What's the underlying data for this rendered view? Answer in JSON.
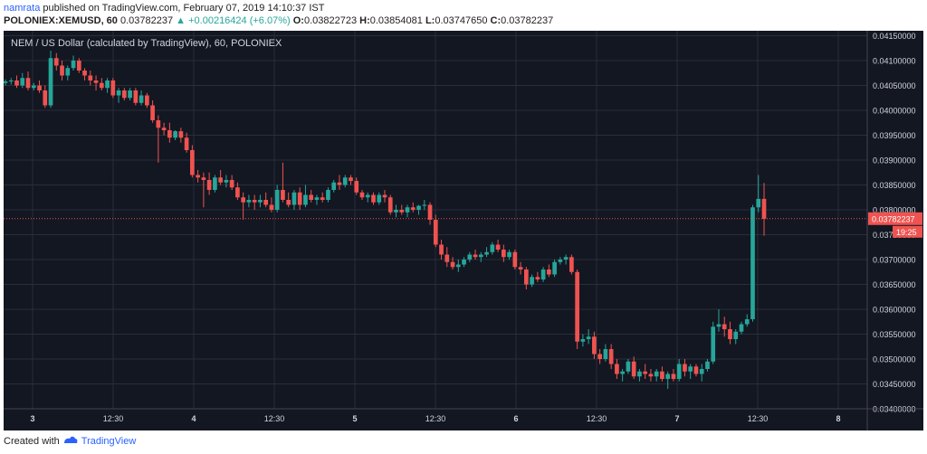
{
  "header": {
    "author": "namrata",
    "published_text": "published on TradingView.com, February 07, 2019 14:10:37 IST",
    "symbol": "POLONIEX:XEMUSD, 60",
    "last": "0.03782237",
    "change": "▲ +0.00216424 (+6.07%)",
    "open_label": "O:",
    "open": "0.03822723",
    "high_label": "H:",
    "high": "0.03854081",
    "low_label": "L:",
    "low": "0.03747650",
    "close_label": "C:",
    "close": "0.03782237"
  },
  "footer": {
    "created_with": "Created with",
    "brand": "TradingView"
  },
  "colors": {
    "background": "#131722",
    "grid": "#2a2e39",
    "up": "#26a69a",
    "down": "#ef5350",
    "price_line": "#ef5350",
    "axis_text": "#d1d4dc"
  },
  "chart_data": {
    "type": "candlestick",
    "title": "NEM / US Dollar (calculated by TradingView), 60, POLONIEX",
    "x_tick_labels": [
      "3",
      "12:30",
      "4",
      "12:30",
      "5",
      "12:30",
      "6",
      "12:30",
      "7",
      "12:30",
      "8"
    ],
    "y_tick_labels": [
      "0.04150000",
      "0.04100000",
      "0.04050000",
      "0.04000000",
      "0.03950000",
      "0.03900000",
      "0.03850000",
      "0.03800000",
      "0.03750000",
      "0.03700000",
      "0.03650000",
      "0.03600000",
      "0.03550000",
      "0.03500000",
      "0.03450000",
      "0.03400000"
    ],
    "ylim": [
      0.034,
      0.0416
    ],
    "price_label": "0.03782237",
    "countdown_label": "19:25",
    "candles": [
      [
        0.04055,
        0.04062,
        0.0405,
        0.04058
      ],
      [
        0.04058,
        0.04065,
        0.04052,
        0.0406
      ],
      [
        0.0406,
        0.0407,
        0.04045,
        0.0405
      ],
      [
        0.0405,
        0.04075,
        0.04045,
        0.04065
      ],
      [
        0.04065,
        0.04078,
        0.0404,
        0.04045
      ],
      [
        0.04045,
        0.04055,
        0.0404,
        0.0405
      ],
      [
        0.0405,
        0.0406,
        0.04035,
        0.0404
      ],
      [
        0.0404,
        0.0405,
        0.04005,
        0.0401
      ],
      [
        0.0401,
        0.0412,
        0.04005,
        0.04105
      ],
      [
        0.04105,
        0.04115,
        0.0408,
        0.0409
      ],
      [
        0.0409,
        0.041,
        0.0406,
        0.0407
      ],
      [
        0.0407,
        0.0409,
        0.0406,
        0.04085
      ],
      [
        0.04085,
        0.0411,
        0.0408,
        0.041
      ],
      [
        0.041,
        0.04105,
        0.04075,
        0.0408
      ],
      [
        0.0408,
        0.04085,
        0.0406,
        0.0407
      ],
      [
        0.0407,
        0.0408,
        0.0405,
        0.0406
      ],
      [
        0.0406,
        0.0407,
        0.0404,
        0.04055
      ],
      [
        0.04055,
        0.04065,
        0.0404,
        0.04045
      ],
      [
        0.04045,
        0.04065,
        0.04035,
        0.0406
      ],
      [
        0.0406,
        0.04065,
        0.04025,
        0.0403
      ],
      [
        0.0403,
        0.04045,
        0.04015,
        0.0404
      ],
      [
        0.0404,
        0.04045,
        0.0402,
        0.04025
      ],
      [
        0.04025,
        0.04045,
        0.0402,
        0.0404
      ],
      [
        0.0404,
        0.04045,
        0.0401,
        0.04015
      ],
      [
        0.04015,
        0.0404,
        0.0401,
        0.0403
      ],
      [
        0.0403,
        0.04035,
        0.04005,
        0.0401
      ],
      [
        0.0401,
        0.0402,
        0.03975,
        0.0398
      ],
      [
        0.0398,
        0.0399,
        0.03895,
        0.03965
      ],
      [
        0.03965,
        0.03975,
        0.0395,
        0.0396
      ],
      [
        0.0396,
        0.03975,
        0.03935,
        0.03945
      ],
      [
        0.03945,
        0.0396,
        0.0394,
        0.03958
      ],
      [
        0.03958,
        0.03965,
        0.03935,
        0.03945
      ],
      [
        0.03945,
        0.03955,
        0.03915,
        0.0392
      ],
      [
        0.0392,
        0.0393,
        0.03865,
        0.0387
      ],
      [
        0.0387,
        0.0388,
        0.03855,
        0.03865
      ],
      [
        0.03865,
        0.03875,
        0.03805,
        0.0386
      ],
      [
        0.0386,
        0.03875,
        0.0383,
        0.0384
      ],
      [
        0.0384,
        0.0387,
        0.03835,
        0.03865
      ],
      [
        0.03865,
        0.0388,
        0.0385,
        0.03855
      ],
      [
        0.03855,
        0.0387,
        0.03845,
        0.0386
      ],
      [
        0.0386,
        0.0387,
        0.0384,
        0.03845
      ],
      [
        0.03845,
        0.03855,
        0.0382,
        0.03825
      ],
      [
        0.03825,
        0.03835,
        0.0378,
        0.03815
      ],
      [
        0.03815,
        0.0383,
        0.03805,
        0.0382
      ],
      [
        0.0382,
        0.0383,
        0.038,
        0.03815
      ],
      [
        0.03815,
        0.0383,
        0.03805,
        0.0382
      ],
      [
        0.0382,
        0.03835,
        0.03805,
        0.0381
      ],
      [
        0.0381,
        0.03825,
        0.03795,
        0.038
      ],
      [
        0.038,
        0.0385,
        0.03795,
        0.0384
      ],
      [
        0.0384,
        0.03895,
        0.03815,
        0.0382
      ],
      [
        0.0382,
        0.03835,
        0.03805,
        0.0381
      ],
      [
        0.0381,
        0.0384,
        0.038,
        0.03835
      ],
      [
        0.03835,
        0.03845,
        0.038,
        0.0381
      ],
      [
        0.0381,
        0.0385,
        0.03805,
        0.0383
      ],
      [
        0.0383,
        0.0384,
        0.03815,
        0.0382
      ],
      [
        0.0382,
        0.0383,
        0.0381,
        0.03825
      ],
      [
        0.03825,
        0.03835,
        0.03815,
        0.0382
      ],
      [
        0.0382,
        0.03845,
        0.03815,
        0.0384
      ],
      [
        0.0384,
        0.0386,
        0.03835,
        0.03855
      ],
      [
        0.03855,
        0.0387,
        0.0384,
        0.0385
      ],
      [
        0.0385,
        0.0387,
        0.03845,
        0.03865
      ],
      [
        0.03865,
        0.0387,
        0.0385,
        0.03858
      ],
      [
        0.03858,
        0.03865,
        0.0383,
        0.03835
      ],
      [
        0.03835,
        0.0384,
        0.0382,
        0.03825
      ],
      [
        0.03825,
        0.03835,
        0.03815,
        0.0383
      ],
      [
        0.0383,
        0.03835,
        0.0381,
        0.03815
      ],
      [
        0.03815,
        0.03835,
        0.0381,
        0.0383
      ],
      [
        0.0383,
        0.0384,
        0.03815,
        0.03825
      ],
      [
        0.03825,
        0.0383,
        0.0379,
        0.03795
      ],
      [
        0.03795,
        0.0381,
        0.03785,
        0.038
      ],
      [
        0.038,
        0.0381,
        0.0379,
        0.03795
      ],
      [
        0.03795,
        0.0381,
        0.03785,
        0.03805
      ],
      [
        0.03805,
        0.03815,
        0.03795,
        0.038
      ],
      [
        0.038,
        0.0381,
        0.0379,
        0.03808
      ],
      [
        0.03808,
        0.0382,
        0.038,
        0.0381
      ],
      [
        0.0381,
        0.03815,
        0.0377,
        0.0378
      ],
      [
        0.0378,
        0.0379,
        0.03725,
        0.0373
      ],
      [
        0.0373,
        0.0374,
        0.037,
        0.0371
      ],
      [
        0.0371,
        0.03725,
        0.03685,
        0.03695
      ],
      [
        0.03695,
        0.03705,
        0.0368,
        0.03685
      ],
      [
        0.03685,
        0.037,
        0.03675,
        0.0369
      ],
      [
        0.0369,
        0.03705,
        0.03685,
        0.037
      ],
      [
        0.037,
        0.03715,
        0.03695,
        0.0371
      ],
      [
        0.0371,
        0.0372,
        0.037,
        0.03705
      ],
      [
        0.03705,
        0.03715,
        0.03695,
        0.0371
      ],
      [
        0.0371,
        0.03725,
        0.03705,
        0.03715
      ],
      [
        0.03715,
        0.03735,
        0.0371,
        0.0373
      ],
      [
        0.0373,
        0.0374,
        0.03715,
        0.0372
      ],
      [
        0.0372,
        0.0373,
        0.03695,
        0.03705
      ],
      [
        0.03705,
        0.0372,
        0.037,
        0.03715
      ],
      [
        0.03715,
        0.0372,
        0.0368,
        0.03685
      ],
      [
        0.03685,
        0.03695,
        0.0367,
        0.0368
      ],
      [
        0.0368,
        0.03685,
        0.0364,
        0.0365
      ],
      [
        0.0365,
        0.0367,
        0.03645,
        0.03665
      ],
      [
        0.03665,
        0.03675,
        0.03655,
        0.0366
      ],
      [
        0.0366,
        0.03685,
        0.03655,
        0.0368
      ],
      [
        0.0368,
        0.0369,
        0.03665,
        0.0367
      ],
      [
        0.0367,
        0.037,
        0.03665,
        0.03695
      ],
      [
        0.03695,
        0.03705,
        0.0369,
        0.037
      ],
      [
        0.037,
        0.0371,
        0.0369,
        0.03705
      ],
      [
        0.03705,
        0.0371,
        0.0367,
        0.03675
      ],
      [
        0.03675,
        0.0368,
        0.0352,
        0.03535
      ],
      [
        0.03535,
        0.0355,
        0.03525,
        0.0354
      ],
      [
        0.0354,
        0.0356,
        0.0353,
        0.03545
      ],
      [
        0.03545,
        0.03555,
        0.035,
        0.0351
      ],
      [
        0.0351,
        0.0352,
        0.0349,
        0.035
      ],
      [
        0.035,
        0.0353,
        0.03495,
        0.0352
      ],
      [
        0.0352,
        0.0353,
        0.0348,
        0.0349
      ],
      [
        0.0349,
        0.035,
        0.0346,
        0.0347
      ],
      [
        0.0347,
        0.0348,
        0.03455,
        0.03475
      ],
      [
        0.03475,
        0.035,
        0.0347,
        0.03495
      ],
      [
        0.03495,
        0.03505,
        0.0346,
        0.03465
      ],
      [
        0.03465,
        0.0348,
        0.03455,
        0.03475
      ],
      [
        0.03475,
        0.0349,
        0.0346,
        0.0347
      ],
      [
        0.0347,
        0.0348,
        0.03455,
        0.03465
      ],
      [
        0.03465,
        0.0348,
        0.03455,
        0.03475
      ],
      [
        0.03475,
        0.03485,
        0.03455,
        0.0346
      ],
      [
        0.0346,
        0.03475,
        0.0344,
        0.0347
      ],
      [
        0.0347,
        0.0348,
        0.03455,
        0.0346
      ],
      [
        0.0346,
        0.035,
        0.03455,
        0.0349
      ],
      [
        0.0349,
        0.035,
        0.03465,
        0.03475
      ],
      [
        0.03475,
        0.0349,
        0.0346,
        0.03485
      ],
      [
        0.03485,
        0.0349,
        0.03465,
        0.0347
      ],
      [
        0.0347,
        0.0349,
        0.03455,
        0.0348
      ],
      [
        0.0348,
        0.035,
        0.03475,
        0.03495
      ],
      [
        0.03495,
        0.03575,
        0.0349,
        0.03565
      ],
      [
        0.03565,
        0.036,
        0.03555,
        0.0357
      ],
      [
        0.0357,
        0.03585,
        0.03545,
        0.0356
      ],
      [
        0.0356,
        0.03575,
        0.0353,
        0.0354
      ],
      [
        0.0354,
        0.0356,
        0.0353,
        0.03555
      ],
      [
        0.03555,
        0.03575,
        0.0355,
        0.0357
      ],
      [
        0.0357,
        0.0359,
        0.03565,
        0.0358
      ],
      [
        0.0358,
        0.0381,
        0.03575,
        0.03805
      ],
      [
        0.03805,
        0.0387,
        0.03795,
        0.03822
      ],
      [
        0.03822,
        0.03854,
        0.03748,
        0.03782
      ]
    ]
  }
}
